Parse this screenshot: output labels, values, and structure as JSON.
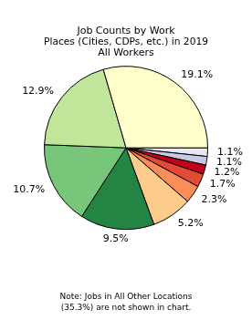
{
  "chart_data": {
    "type": "pie",
    "title": [
      "Job Counts by Work",
      "Places (Cities, CDPs, etc.) in 2019",
      "All Workers"
    ],
    "annotation": [
      "Note: Jobs in All Other Locations",
      "(35.3%) are not shown in chart."
    ],
    "values": [
      1.1,
      1.1,
      1.2,
      1.7,
      2.3,
      5.2,
      9.5,
      10.7,
      12.9,
      19.1
    ],
    "value_labels": [
      "1.1%",
      "1.1%",
      "1.2%",
      "1.7%",
      "2.3%",
      "5.2%",
      "9.5%",
      "10.7%",
      "12.9%",
      "19.1%"
    ],
    "colors": [
      "#e6e6f3",
      "#c9c9e6",
      "#c4001a",
      "#e34a33",
      "#fc8d59",
      "#fdcc8a",
      "#238443",
      "#78c679",
      "#c2e699",
      "#ffffcc"
    ],
    "data_labels": true
  }
}
